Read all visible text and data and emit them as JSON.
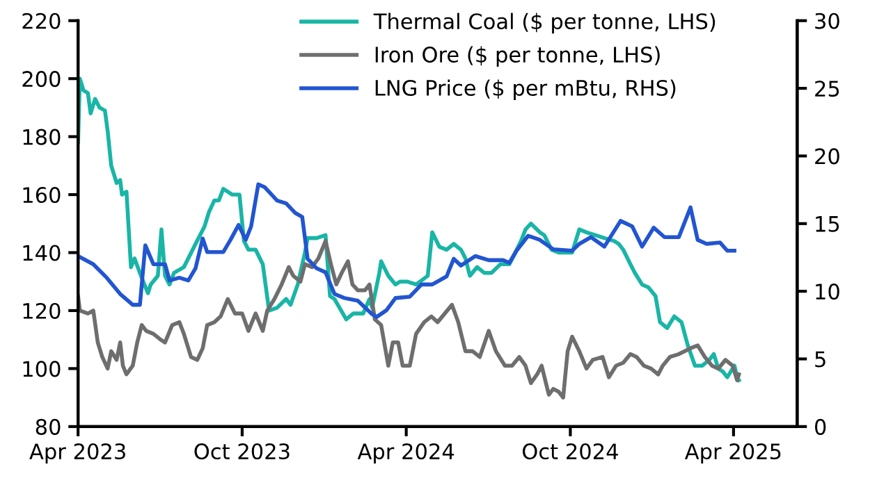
{
  "chart_data": {
    "type": "line",
    "legend": "top right",
    "grid": false,
    "line_style": "solid",
    "marker": "none",
    "xlim": [
      "2023-04-01",
      "2025-06-11"
    ],
    "xticks": [
      {
        "value": "2023-04-01",
        "label": "Apr 2023"
      },
      {
        "value": "2023-10-01",
        "label": "Oct 2023"
      },
      {
        "value": "2024-04-01",
        "label": "Apr 2024"
      },
      {
        "value": "2024-10-01",
        "label": "Oct 2024"
      },
      {
        "value": "2025-04-01",
        "label": "Apr 2025"
      }
    ],
    "ylim": [
      80,
      220
    ],
    "yticks": [
      80,
      100,
      120,
      140,
      160,
      180,
      200,
      220
    ],
    "y2lim": [
      0,
      30
    ],
    "y2ticks": [
      0,
      5,
      10,
      15,
      20,
      25,
      30
    ],
    "series": [
      {
        "name": "Thermal Coal ($ per tonne, LHS)",
        "color": "#19b5a6",
        "x": [
          "2023-04-01",
          "2023-04-03",
          "2023-04-07",
          "2023-04-12",
          "2023-04-15",
          "2023-04-20",
          "2023-04-25",
          "2023-05-01",
          "2023-05-04",
          "2023-05-08",
          "2023-05-14",
          "2023-05-18",
          "2023-05-20",
          "2023-05-25",
          "2023-05-30",
          "2023-06-03",
          "2023-06-09",
          "2023-06-14",
          "2023-06-18",
          "2023-06-21",
          "2023-06-29",
          "2023-07-03",
          "2023-07-07",
          "2023-07-12",
          "2023-07-17",
          "2023-07-28",
          "2023-08-02",
          "2023-08-10",
          "2023-08-20",
          "2023-08-25",
          "2023-08-31",
          "2023-09-05",
          "2023-09-10",
          "2023-09-20",
          "2023-09-28",
          "2023-10-03",
          "2023-10-08",
          "2023-10-16",
          "2023-10-24",
          "2023-10-31",
          "2023-11-09",
          "2023-11-19",
          "2023-11-24",
          "2023-12-02",
          "2023-12-10",
          "2023-12-13",
          "2023-12-23",
          "2024-01-02",
          "2024-01-07",
          "2024-01-12",
          "2024-01-25",
          "2024-02-02",
          "2024-02-13",
          "2024-02-20",
          "2024-02-23",
          "2024-03-02",
          "2024-03-04",
          "2024-03-12",
          "2024-03-20",
          "2024-03-25",
          "2024-04-02",
          "2024-04-12",
          "2024-04-25",
          "2024-04-30",
          "2024-05-08",
          "2024-05-16",
          "2024-05-24",
          "2024-06-01",
          "2024-06-06",
          "2024-06-11",
          "2024-06-19",
          "2024-06-27",
          "2024-07-05",
          "2024-07-15",
          "2024-07-25",
          "2024-07-30",
          "2024-08-07",
          "2024-08-12",
          "2024-08-18",
          "2024-08-28",
          "2024-09-02",
          "2024-09-10",
          "2024-09-18",
          "2024-09-28",
          "2024-10-03",
          "2024-10-11",
          "2024-10-19",
          "2024-10-29",
          "2024-11-08",
          "2024-11-19",
          "2024-11-24",
          "2024-11-29",
          "2024-12-07",
          "2024-12-12",
          "2024-12-20",
          "2024-12-27",
          "2025-01-04",
          "2025-01-09",
          "2025-01-17",
          "2025-01-25",
          "2025-02-02",
          "2025-02-09",
          "2025-02-17",
          "2025-02-25",
          "2025-03-05",
          "2025-03-10",
          "2025-03-15",
          "2025-03-20",
          "2025-03-25",
          "2025-03-31",
          "2025-04-02",
          "2025-04-05",
          "2025-04-07"
        ],
        "values": [
          178,
          200,
          196,
          195,
          188,
          193,
          190,
          189,
          182,
          170,
          164,
          165,
          160,
          161,
          135,
          138,
          133,
          129,
          126,
          129,
          132,
          148,
          132,
          129,
          133,
          135,
          138,
          143,
          149,
          154,
          158,
          158,
          162,
          160,
          160,
          144,
          141,
          141,
          136,
          120,
          121,
          124,
          122,
          129,
          140,
          145,
          145,
          146,
          125,
          124,
          117,
          119,
          119,
          124,
          121,
          133,
          137,
          132,
          129,
          130,
          130,
          129,
          132,
          147,
          142,
          141,
          143,
          141,
          138,
          132,
          135,
          133,
          133,
          136,
          136,
          139,
          144,
          148,
          150,
          147,
          146,
          141,
          140,
          140,
          140,
          148,
          147,
          146,
          145,
          144,
          143,
          141,
          136,
          133,
          129,
          128,
          125,
          116,
          114,
          118,
          116,
          108,
          101,
          101,
          103,
          105,
          100,
          99,
          97,
          100,
          101,
          97,
          96
        ]
      },
      {
        "name": "Iron Ore ($ per tonne, LHS)",
        "color": "#6e6e6e",
        "x": [
          "2023-04-01",
          "2023-04-03",
          "2023-04-12",
          "2023-04-18",
          "2023-04-23",
          "2023-04-28",
          "2023-05-04",
          "2023-05-08",
          "2023-05-14",
          "2023-05-18",
          "2023-05-21",
          "2023-05-25",
          "2023-06-01",
          "2023-06-06",
          "2023-06-11",
          "2023-06-16",
          "2023-06-24",
          "2023-07-02",
          "2023-07-07",
          "2023-07-15",
          "2023-07-23",
          "2023-07-28",
          "2023-08-05",
          "2023-08-12",
          "2023-08-18",
          "2023-08-23",
          "2023-08-31",
          "2023-09-07",
          "2023-09-15",
          "2023-09-23",
          "2023-10-01",
          "2023-10-08",
          "2023-10-16",
          "2023-10-24",
          "2023-10-29",
          "2023-11-06",
          "2023-11-14",
          "2023-11-22",
          "2023-11-27",
          "2023-12-05",
          "2023-12-10",
          "2023-12-18",
          "2023-12-25",
          "2024-01-02",
          "2024-01-08",
          "2024-01-14",
          "2024-01-20",
          "2024-01-27",
          "2024-02-01",
          "2024-02-07",
          "2024-02-15",
          "2024-02-20",
          "2024-02-26",
          "2024-03-04",
          "2024-03-12",
          "2024-03-17",
          "2024-03-23",
          "2024-03-28",
          "2024-04-05",
          "2024-04-12",
          "2024-04-21",
          "2024-04-29",
          "2024-05-06",
          "2024-05-14",
          "2024-05-22",
          "2024-05-29",
          "2024-06-06",
          "2024-06-14",
          "2024-06-22",
          "2024-07-02",
          "2024-07-10",
          "2024-07-20",
          "2024-07-28",
          "2024-08-05",
          "2024-08-12",
          "2024-08-18",
          "2024-08-25",
          "2024-08-30",
          "2024-09-07",
          "2024-09-12",
          "2024-09-18",
          "2024-09-23",
          "2024-09-28",
          "2024-10-03",
          "2024-10-11",
          "2024-10-19",
          "2024-10-26",
          "2024-11-06",
          "2024-11-13",
          "2024-11-21",
          "2024-11-29",
          "2024-12-07",
          "2024-12-14",
          "2024-12-22",
          "2024-12-30",
          "2025-01-07",
          "2025-01-12",
          "2025-01-20",
          "2025-01-30",
          "2025-02-12",
          "2025-02-20",
          "2025-02-28",
          "2025-03-08",
          "2025-03-15",
          "2025-03-23",
          "2025-03-31",
          "2025-04-05",
          "2025-04-07"
        ],
        "values": [
          125,
          120,
          119,
          120,
          109,
          104,
          100,
          106,
          103,
          109,
          101,
          98,
          101,
          109,
          115,
          113,
          112,
          110,
          109,
          115,
          116,
          112,
          104,
          103,
          107,
          115,
          116,
          118,
          124,
          119,
          119,
          113,
          119,
          113,
          120,
          124,
          129,
          135,
          132,
          130,
          136,
          135,
          138,
          144,
          136,
          129,
          133,
          137,
          129,
          127,
          127,
          129,
          117,
          115,
          101,
          109,
          109,
          101,
          101,
          112,
          116,
          118,
          116,
          119,
          122,
          116,
          106,
          106,
          104,
          113,
          106,
          101,
          101,
          104,
          101,
          95,
          98,
          101,
          91,
          93,
          92,
          90,
          106,
          111,
          106,
          100,
          103,
          104,
          97,
          101,
          102,
          105,
          104,
          101,
          100,
          98,
          101,
          104,
          105,
          107,
          108,
          104,
          101,
          100,
          103,
          101,
          96,
          98
        ]
      },
      {
        "name": "LNG Price ($ per mBtu, RHS)",
        "color": "#2255d0",
        "axis": "y2",
        "x": [
          "2023-04-01",
          "2023-04-18",
          "2023-05-03",
          "2023-05-18",
          "2023-06-01",
          "2023-06-09",
          "2023-06-15",
          "2023-06-24",
          "2023-07-07",
          "2023-07-12",
          "2023-07-23",
          "2023-08-02",
          "2023-08-10",
          "2023-08-18",
          "2023-08-23",
          "2023-09-10",
          "2023-09-18",
          "2023-09-27",
          "2023-10-05",
          "2023-10-11",
          "2023-10-19",
          "2023-10-26",
          "2023-11-09",
          "2023-11-19",
          "2023-11-29",
          "2023-12-07",
          "2023-12-13",
          "2023-12-23",
          "2024-01-02",
          "2024-01-12",
          "2024-01-23",
          "2024-02-07",
          "2024-02-23",
          "2024-02-28",
          "2024-03-10",
          "2024-03-20",
          "2024-04-05",
          "2024-04-18",
          "2024-04-30",
          "2024-05-16",
          "2024-05-24",
          "2024-06-01",
          "2024-06-17",
          "2024-07-02",
          "2024-07-18",
          "2024-07-25",
          "2024-08-02",
          "2024-08-15",
          "2024-08-28",
          "2024-09-12",
          "2024-10-03",
          "2024-10-11",
          "2024-10-24",
          "2024-11-08",
          "2024-11-26",
          "2024-12-09",
          "2024-12-20",
          "2025-01-02",
          "2025-01-14",
          "2025-01-30",
          "2025-02-12",
          "2025-02-20",
          "2025-03-02",
          "2025-03-17",
          "2025-03-25",
          "2025-04-02"
        ],
        "values": [
          12.6,
          12.0,
          11.0,
          9.8,
          9.0,
          9.0,
          13.4,
          12.0,
          12.0,
          10.8,
          11.0,
          10.8,
          11.7,
          13.9,
          12.9,
          12.9,
          13.8,
          14.9,
          13.8,
          14.8,
          17.9,
          17.7,
          16.7,
          16.5,
          15.8,
          15.5,
          12.4,
          11.7,
          11.4,
          9.8,
          9.5,
          9.3,
          8.3,
          8.1,
          8.6,
          9.5,
          9.6,
          10.5,
          10.5,
          11.1,
          12.4,
          11.9,
          12.6,
          12.3,
          12.3,
          12.1,
          13.0,
          14.1,
          13.8,
          13.1,
          13.0,
          13.5,
          14.0,
          13.3,
          15.2,
          14.8,
          13.3,
          14.7,
          14.0,
          14.0,
          16.2,
          13.8,
          13.5,
          13.6,
          13.0,
          13.0
        ]
      }
    ]
  }
}
